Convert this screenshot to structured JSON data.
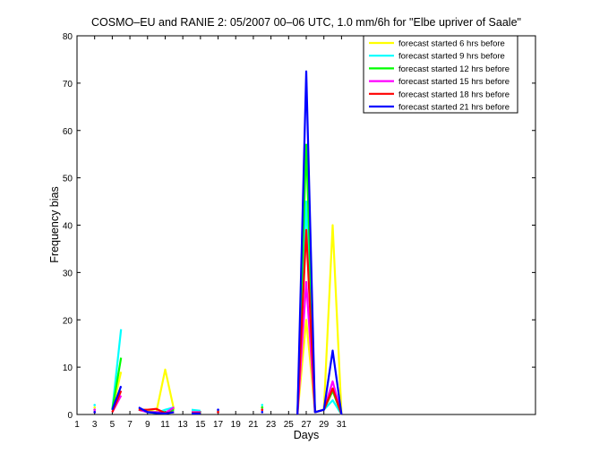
{
  "chart_data": {
    "type": "line",
    "title": "COSMO–EU and RANIE 2: 05/2007 00–06 UTC, 1.0 mm/6h for \"Elbe upriver of Saale\"",
    "xlabel": "Days",
    "ylabel": "Frequency bias",
    "xlim": [
      1,
      53
    ],
    "ylim": [
      0,
      80
    ],
    "xticks": [
      "1",
      "3",
      "5",
      "7",
      "9",
      "11",
      "13",
      "15",
      "17",
      "19",
      "21",
      "23",
      "25",
      "27",
      "29",
      "31"
    ],
    "yticks": [
      "0",
      "10",
      "20",
      "30",
      "40",
      "50",
      "60",
      "70",
      "80"
    ],
    "grid": false,
    "legend_position": "top-right",
    "series": [
      {
        "name": "forecast started 6 hrs before",
        "color": "#ffff00",
        "segments": [
          [
            [
              3,
              1.5
            ]
          ],
          [
            [
              5,
              1
            ],
            [
              6,
              9
            ]
          ],
          [
            [
              8,
              1
            ],
            [
              9,
              1
            ],
            [
              10,
              0.5
            ],
            [
              11,
              9.5
            ],
            [
              12,
              1
            ]
          ],
          [
            [
              14,
              0.5
            ],
            [
              15,
              0.5
            ]
          ],
          [
            [
              17,
              0.8
            ]
          ],
          [
            [
              22,
              1.5
            ]
          ],
          [
            [
              26,
              0
            ],
            [
              27,
              20
            ],
            [
              28,
              0.5
            ],
            [
              29,
              1
            ],
            [
              30,
              40
            ],
            [
              31,
              0
            ]
          ]
        ]
      },
      {
        "name": "forecast started 9 hrs before",
        "color": "#00ffff",
        "segments": [
          [
            [
              3,
              2
            ]
          ],
          [
            [
              5,
              1
            ],
            [
              6,
              18
            ]
          ],
          [
            [
              8,
              1
            ],
            [
              9,
              0.5
            ],
            [
              10,
              0.3
            ],
            [
              11,
              1
            ],
            [
              12,
              1.5
            ]
          ],
          [
            [
              14,
              1
            ],
            [
              15,
              0.8
            ]
          ],
          [
            [
              17,
              0.5
            ]
          ],
          [
            [
              22,
              2
            ]
          ],
          [
            [
              26,
              0
            ],
            [
              27,
              45
            ],
            [
              28,
              0.5
            ],
            [
              29,
              1
            ],
            [
              30,
              3
            ],
            [
              31,
              0
            ]
          ]
        ]
      },
      {
        "name": "forecast started 12 hrs before",
        "color": "#00ff00",
        "segments": [
          [
            [
              3,
              1
            ]
          ],
          [
            [
              5,
              1
            ],
            [
              6,
              12
            ]
          ],
          [
            [
              8,
              1
            ],
            [
              9,
              0.5
            ],
            [
              10,
              0.5
            ],
            [
              11,
              0.5
            ],
            [
              12,
              1
            ]
          ],
          [
            [
              14,
              0.5
            ],
            [
              15,
              0.5
            ]
          ],
          [
            [
              17,
              0.5
            ]
          ],
          [
            [
              22,
              1.5
            ]
          ],
          [
            [
              26,
              0
            ],
            [
              27,
              57
            ],
            [
              28,
              0.5
            ],
            [
              29,
              1
            ],
            [
              30,
              5
            ],
            [
              31,
              0
            ]
          ]
        ]
      },
      {
        "name": "forecast started 15 hrs before",
        "color": "#ff00ff",
        "segments": [
          [
            [
              3,
              1
            ]
          ],
          [
            [
              5,
              0.5
            ],
            [
              6,
              4
            ]
          ],
          [
            [
              8,
              1
            ],
            [
              9,
              0.5
            ],
            [
              10,
              0.5
            ],
            [
              11,
              0.3
            ],
            [
              12,
              1.5
            ]
          ],
          [
            [
              14,
              0.5
            ],
            [
              15,
              0.5
            ]
          ],
          [
            [
              17,
              0.5
            ]
          ],
          [
            [
              22,
              1
            ]
          ],
          [
            [
              26,
              0
            ],
            [
              27,
              28
            ],
            [
              28,
              0.5
            ],
            [
              29,
              1
            ],
            [
              30,
              7
            ],
            [
              31,
              0
            ]
          ]
        ]
      },
      {
        "name": "forecast started 18 hrs before",
        "color": "#ff0000",
        "segments": [
          [
            [
              3,
              0.5
            ]
          ],
          [
            [
              5,
              0.5
            ],
            [
              6,
              5
            ]
          ],
          [
            [
              8,
              1
            ],
            [
              9,
              1
            ],
            [
              10,
              1.2
            ],
            [
              11,
              0.3
            ],
            [
              12,
              0.5
            ]
          ],
          [
            [
              14,
              0.3
            ],
            [
              15,
              0.3
            ]
          ],
          [
            [
              17,
              0.5
            ]
          ],
          [
            [
              22,
              1
            ]
          ],
          [
            [
              26,
              0
            ],
            [
              27,
              39
            ],
            [
              28,
              0.5
            ],
            [
              29,
              1
            ],
            [
              30,
              5.5
            ],
            [
              31,
              0
            ]
          ]
        ]
      },
      {
        "name": "forecast started 21 hrs before",
        "color": "#0000ff",
        "segments": [
          [
            [
              3,
              0.5
            ]
          ],
          [
            [
              5,
              1
            ],
            [
              6,
              6
            ]
          ],
          [
            [
              8,
              1.5
            ],
            [
              9,
              0.5
            ],
            [
              10,
              0.3
            ],
            [
              11,
              0.2
            ],
            [
              12,
              0.5
            ]
          ],
          [
            [
              14,
              0.2
            ],
            [
              15,
              0.2
            ]
          ],
          [
            [
              17,
              1
            ]
          ],
          [
            [
              22,
              0.5
            ]
          ],
          [
            [
              26,
              0
            ],
            [
              27,
              72.5
            ],
            [
              28,
              0.5
            ],
            [
              29,
              1
            ],
            [
              30,
              13.5
            ],
            [
              31,
              0
            ]
          ]
        ]
      }
    ]
  }
}
